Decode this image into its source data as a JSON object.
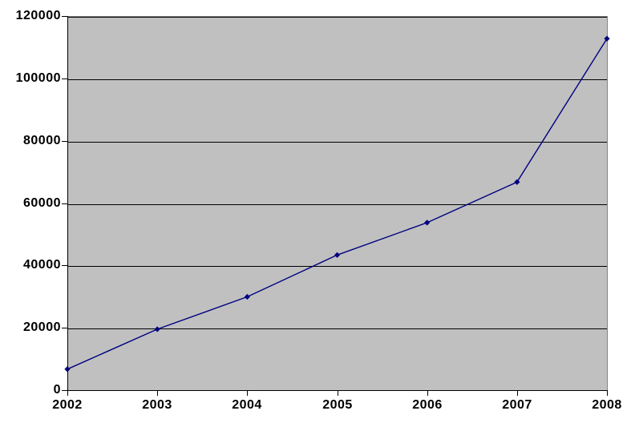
{
  "chart_data": {
    "type": "line",
    "title": "",
    "xlabel": "",
    "ylabel": "",
    "categories": [
      "2002",
      "2003",
      "2004",
      "2005",
      "2006",
      "2007",
      "2008"
    ],
    "values": [
      7000,
      19800,
      30200,
      43600,
      54000,
      67000,
      113000
    ],
    "ylim": [
      0,
      120000
    ],
    "yticks": [
      0,
      20000,
      40000,
      60000,
      80000,
      100000,
      120000
    ],
    "grid": true,
    "legend": false,
    "marker": "diamond",
    "colors": {
      "line": "#000080",
      "marker": "#000080",
      "plot_background": "#C0C0C0",
      "gridline": "#000000",
      "axis": "#000000",
      "plot_border": "#848484",
      "text": "#000000",
      "page_background": "#FFFFFF"
    }
  }
}
